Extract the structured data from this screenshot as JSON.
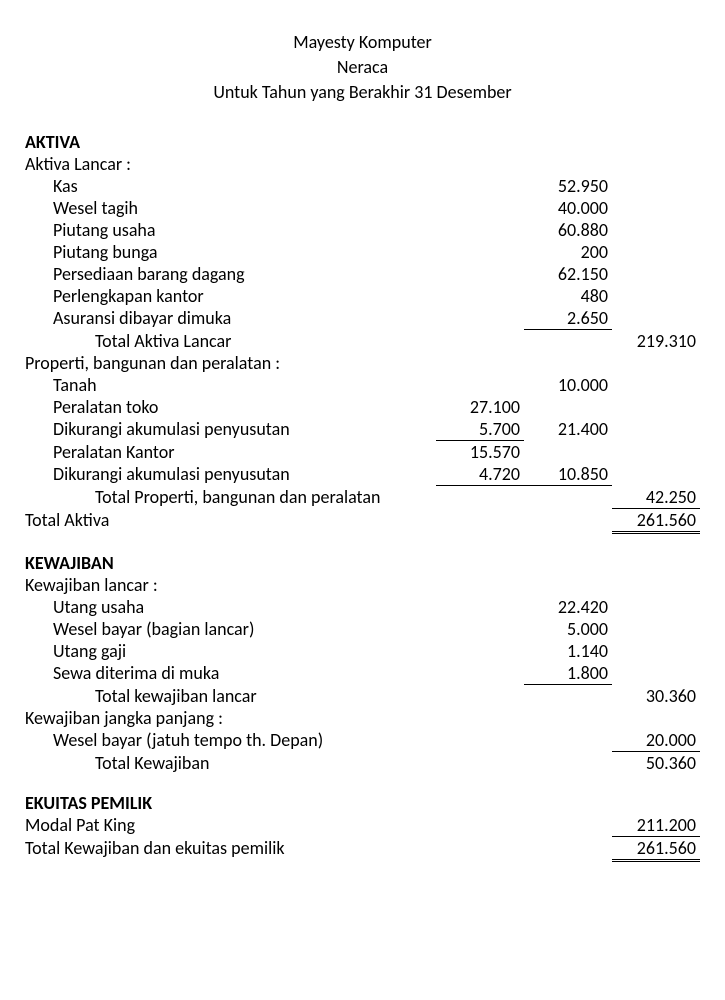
{
  "header": {
    "company": "Mayesty Komputer",
    "report": "Neraca",
    "period": "Untuk Tahun yang Berakhir 31 Desember"
  },
  "aktiva": {
    "title": "AKTIVA",
    "lancar": {
      "heading": "Aktiva Lancar :",
      "items": [
        {
          "label": "Kas",
          "v2": "52.950"
        },
        {
          "label": "Wesel tagih",
          "v2": "40.000"
        },
        {
          "label": "Piutang usaha",
          "v2": "60.880"
        },
        {
          "label": "Piutang bunga",
          "v2": "200"
        },
        {
          "label": "Persediaan barang dagang",
          "v2": "62.150"
        },
        {
          "label": "Perlengkapan kantor",
          "v2": "480"
        },
        {
          "label": "Asuransi dibayar dimuka",
          "v2": "2.650",
          "u2": true
        }
      ],
      "total_label": "Total Aktiva Lancar",
      "total": "219.310"
    },
    "properti": {
      "heading": "Properti, bangunan dan peralatan :",
      "items": [
        {
          "label": "Tanah",
          "v2": "10.000"
        },
        {
          "label": "Peralatan toko",
          "v1": "27.100"
        },
        {
          "label": "Dikurangi akumulasi penyusutan",
          "v1": "5.700",
          "u1": true,
          "v2": "21.400"
        },
        {
          "label": "Peralatan Kantor",
          "v1": "15.570"
        },
        {
          "label": "Dikurangi akumulasi penyusutan",
          "v1": "4.720",
          "u1": true,
          "v2": "10.850",
          "u2": true
        }
      ],
      "total_label": "Total Properti, bangunan dan peralatan",
      "total": "42.250"
    },
    "total_label": "Total Aktiva",
    "total": "261.560"
  },
  "kewajiban": {
    "title": "KEWAJIBAN",
    "lancar": {
      "heading": "Kewajiban lancar :",
      "items": [
        {
          "label": "Utang usaha",
          "v2": "22.420"
        },
        {
          "label": "Wesel bayar (bagian lancar)",
          "v2": "5.000"
        },
        {
          "label": "Utang gaji",
          "v2": "1.140"
        },
        {
          "label": "Sewa diterima di muka",
          "v2": "1.800",
          "u2": true
        }
      ],
      "total_label": "Total kewajiban lancar",
      "total": "30.360"
    },
    "panjang": {
      "heading": "Kewajiban jangka panjang :",
      "items": [
        {
          "label": "Wesel bayar (jatuh tempo th. Depan)",
          "v3": "20.000",
          "u3": true
        }
      ],
      "total_label": "Total Kewajiban",
      "total": "50.360"
    }
  },
  "ekuitas": {
    "title": "EKUITAS PEMILIK",
    "modal_label": "Modal Pat King",
    "modal": "211.200",
    "total_label": "Total Kewajiban dan ekuitas pemilik",
    "total": "261.560"
  }
}
